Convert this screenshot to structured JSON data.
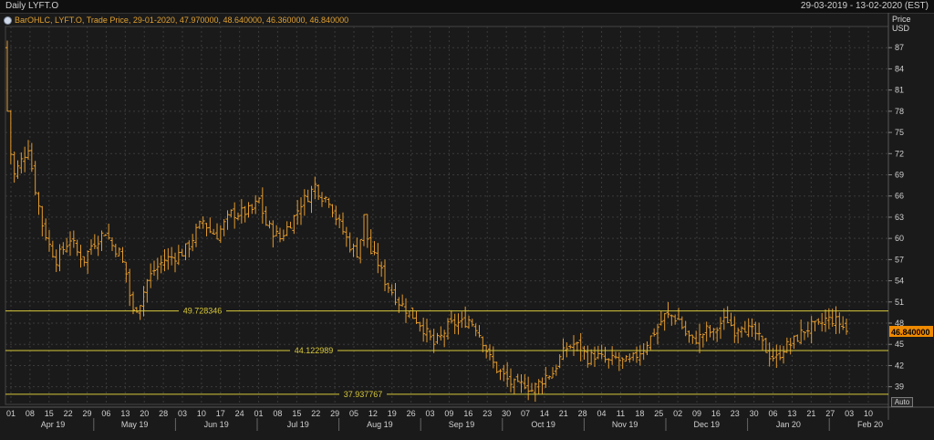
{
  "window": {
    "title": "Daily LYFT.O",
    "date_range": "29-03-2019 - 13-02-2020 (EST)",
    "legend": "BarOHLC, LYFT.O, Trade Price, 29-01-2020, 47.970000, 48.640000, 46.360000, 46.840000",
    "price_axis_label": "Price",
    "currency_label": "USD",
    "auto_label": "Auto"
  },
  "colors": {
    "background": "#1a1a1a",
    "grid": "#3a3a3a",
    "bars": "#e39a2e",
    "levels": "#d8c83a",
    "last_price_badge": "#f08a00"
  },
  "chart_data": {
    "type": "ohlc",
    "ticker": "LYFT.O",
    "y_ticks": [
      39,
      42,
      45,
      48,
      51,
      54,
      57,
      60,
      63,
      66,
      69,
      72,
      75,
      78,
      81,
      84,
      87
    ],
    "y_range": [
      36.5,
      90.0
    ],
    "x_day_labels": [
      "01",
      "08",
      "15",
      "22",
      "29",
      "06",
      "13",
      "20",
      "28",
      "03",
      "10",
      "17",
      "24",
      "01",
      "08",
      "15",
      "22",
      "29",
      "05",
      "12",
      "19",
      "26",
      "03",
      "09",
      "16",
      "23",
      "30",
      "07",
      "14",
      "21",
      "28",
      "04",
      "11",
      "18",
      "25",
      "02",
      "09",
      "16",
      "23",
      "30",
      "06",
      "13",
      "21",
      "27",
      "03",
      "10"
    ],
    "x_month_labels": [
      "Apr 19",
      "May 19",
      "Jun 19",
      "Jul 19",
      "Aug 19",
      "Sep 19",
      "Oct 19",
      "Nov 19",
      "Dec 19",
      "Jan 20",
      "Feb 20"
    ],
    "horizontal_levels": [
      {
        "value": 49.728346,
        "label": "49.728346"
      },
      {
        "value": 44.122989,
        "label": "44.122989"
      },
      {
        "value": 37.937767,
        "label": "37.937767"
      }
    ],
    "last_price": 46.84,
    "last_price_label": "46.840000",
    "last_bar": {
      "date": "29-01-2020",
      "open": 47.97,
      "high": 48.64,
      "low": 46.36,
      "close": 46.84
    },
    "close_anchors": [
      [
        0,
        78
      ],
      [
        1,
        72
      ],
      [
        2,
        69
      ],
      [
        4,
        71
      ],
      [
        6,
        73
      ],
      [
        8,
        67
      ],
      [
        10,
        62
      ],
      [
        12,
        59
      ],
      [
        14,
        57
      ],
      [
        16,
        58.5
      ],
      [
        18,
        60
      ],
      [
        20,
        58
      ],
      [
        22,
        57
      ],
      [
        24,
        59
      ],
      [
        26,
        60
      ],
      [
        28,
        61
      ],
      [
        30,
        59
      ],
      [
        32,
        58
      ],
      [
        34,
        55
      ],
      [
        35,
        52
      ],
      [
        36,
        49.5
      ],
      [
        38,
        51
      ],
      [
        40,
        54
      ],
      [
        42,
        55.5
      ],
      [
        45,
        57
      ],
      [
        48,
        57.5
      ],
      [
        50,
        58
      ],
      [
        52,
        59
      ],
      [
        54,
        61
      ],
      [
        56,
        62.5
      ],
      [
        58,
        61
      ],
      [
        60,
        60.5
      ],
      [
        62,
        62
      ],
      [
        64,
        63.5
      ],
      [
        66,
        63.5
      ],
      [
        70,
        64
      ],
      [
        72,
        65.5
      ],
      [
        74,
        62
      ],
      [
        76,
        61
      ],
      [
        78,
        60
      ],
      [
        80,
        61.5
      ],
      [
        82,
        63
      ],
      [
        84,
        65
      ],
      [
        86,
        66
      ],
      [
        88,
        67.5
      ],
      [
        90,
        66
      ],
      [
        92,
        65.5
      ],
      [
        94,
        63
      ],
      [
        96,
        61
      ],
      [
        98,
        59
      ],
      [
        100,
        58
      ],
      [
        101,
        60
      ],
      [
        102,
        63
      ],
      [
        103,
        60
      ],
      [
        104,
        58
      ],
      [
        106,
        56.5
      ],
      [
        108,
        54
      ],
      [
        110,
        52.5
      ],
      [
        112,
        51
      ],
      [
        114,
        50
      ],
      [
        116,
        49
      ],
      [
        118,
        48
      ],
      [
        120,
        46.5
      ],
      [
        122,
        45
      ],
      [
        124,
        46
      ],
      [
        126,
        47.5
      ],
      [
        128,
        48
      ],
      [
        130,
        48
      ],
      [
        132,
        48.5
      ],
      [
        134,
        47.5
      ],
      [
        136,
        45.5
      ],
      [
        138,
        43
      ],
      [
        140,
        41.5
      ],
      [
        142,
        40.5
      ],
      [
        144,
        39.5
      ],
      [
        146,
        39
      ],
      [
        148,
        39.5
      ],
      [
        150,
        38.5
      ],
      [
        152,
        39.5
      ],
      [
        154,
        40.5
      ],
      [
        156,
        41
      ],
      [
        158,
        43
      ],
      [
        160,
        44.5
      ],
      [
        162,
        45
      ],
      [
        164,
        44.5
      ],
      [
        166,
        43
      ],
      [
        168,
        43.5
      ],
      [
        170,
        43
      ],
      [
        172,
        42.5
      ],
      [
        174,
        43
      ],
      [
        176,
        42.5
      ],
      [
        178,
        42.5
      ],
      [
        180,
        43.5
      ],
      [
        182,
        44.5
      ],
      [
        184,
        46
      ],
      [
        186,
        47.5
      ],
      [
        188,
        49
      ],
      [
        190,
        49
      ],
      [
        192,
        48.5
      ],
      [
        194,
        46.5
      ],
      [
        196,
        45.5
      ],
      [
        198,
        46
      ],
      [
        200,
        47
      ],
      [
        202,
        46.5
      ],
      [
        204,
        48
      ],
      [
        206,
        48.5
      ],
      [
        208,
        47
      ],
      [
        210,
        48
      ],
      [
        212,
        47
      ],
      [
        214,
        46.5
      ],
      [
        216,
        45
      ],
      [
        218,
        43.5
      ],
      [
        220,
        43
      ],
      [
        222,
        44.5
      ],
      [
        224,
        45
      ],
      [
        226,
        46
      ],
      [
        228,
        47
      ],
      [
        230,
        47.5
      ],
      [
        232,
        47.5
      ],
      [
        234,
        48.5
      ],
      [
        236,
        48.5
      ],
      [
        238,
        48
      ],
      [
        240,
        46.84
      ]
    ]
  }
}
